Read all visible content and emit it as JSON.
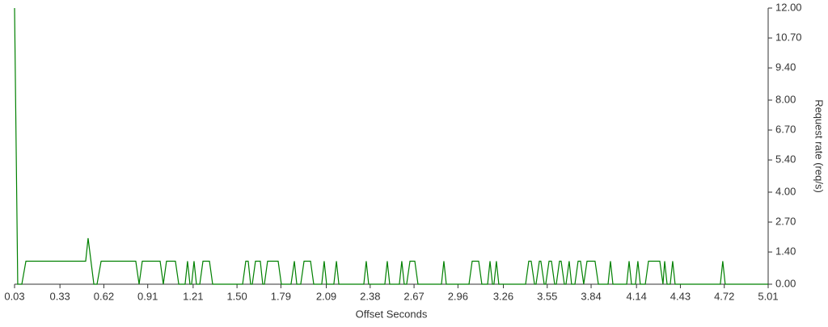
{
  "chart_data": {
    "type": "line",
    "x_label": "Offset Seconds",
    "y_label": "Request rate (req/s)",
    "color": "#008000",
    "y_axis_side": "right",
    "xlim": [
      0.03,
      5.01
    ],
    "xticks": [
      0.03,
      0.33,
      0.62,
      0.91,
      1.21,
      {
        "value": 1.5,
        "label": "1.50"
      },
      1.79,
      2.09,
      2.38,
      2.67,
      2.96,
      3.26,
      3.55,
      3.84,
      4.14,
      4.43,
      4.72,
      5.01
    ],
    "ylim": [
      0,
      12
    ],
    "yticks": [
      {
        "value": 0,
        "label": "0.00"
      },
      {
        "value": 1.4,
        "label": "1.40"
      },
      {
        "value": 2.7,
        "label": "2.70"
      },
      {
        "value": 4,
        "label": "4.00"
      },
      {
        "value": 5.4,
        "label": "5.40"
      },
      {
        "value": 6.7,
        "label": "6.70"
      },
      {
        "value": 8,
        "label": "8.00"
      },
      {
        "value": 9.4,
        "label": "9.40"
      },
      {
        "value": 10.7,
        "label": "10.70"
      },
      {
        "value": 12,
        "label": "12.00"
      }
    ],
    "x": [
      0.03,
      0.051,
      0.078,
      0.105,
      0.5,
      0.516,
      0.554,
      0.575,
      0.602,
      0.831,
      0.853,
      0.874,
      0.992,
      1.013,
      1.034,
      1.093,
      1.115,
      1.157,
      1.173,
      1.189,
      1.2,
      1.216,
      1.232,
      1.254,
      1.275,
      1.318,
      1.339,
      1.537,
      1.558,
      1.574,
      1.59,
      1.601,
      1.622,
      1.654,
      1.67,
      1.681,
      1.702,
      1.772,
      1.793,
      1.857,
      1.879,
      1.895,
      1.921,
      1.943,
      1.986,
      2.007,
      2.06,
      2.076,
      2.092,
      2.14,
      2.157,
      2.173,
      2.338,
      2.354,
      2.37,
      2.477,
      2.493,
      2.509,
      2.573,
      2.589,
      2.605,
      2.621,
      2.643,
      2.675,
      2.696,
      2.851,
      2.867,
      2.883,
      3.033,
      3.054,
      3.097,
      3.118,
      3.156,
      3.172,
      3.188,
      3.198,
      3.214,
      3.23,
      3.407,
      3.428,
      3.444,
      3.466,
      3.476,
      3.498,
      3.508,
      3.53,
      3.54,
      3.562,
      3.578,
      3.599,
      3.61,
      3.631,
      3.642,
      3.663,
      3.674,
      3.695,
      3.711,
      3.733,
      3.754,
      3.77,
      3.791,
      3.813,
      3.866,
      3.888,
      3.952,
      3.968,
      3.984,
      4.075,
      4.091,
      4.107,
      4.133,
      4.149,
      4.165,
      4.198,
      4.219,
      4.294,
      4.315,
      4.326,
      4.342,
      4.363,
      4.379,
      4.395,
      4.694,
      4.71,
      4.726,
      5.01
    ],
    "values": [
      12,
      0,
      0,
      1,
      1,
      2,
      0,
      0,
      1,
      1,
      0,
      1,
      1,
      0,
      1,
      1,
      0,
      0,
      1,
      0,
      0,
      1,
      0,
      0,
      1,
      1,
      0,
      0,
      1,
      1,
      0,
      0,
      1,
      1,
      0,
      0,
      1,
      1,
      0,
      0,
      1,
      0,
      0,
      1,
      1,
      0,
      0,
      1,
      0,
      0,
      1,
      0,
      0,
      1,
      0,
      0,
      1,
      0,
      0,
      1,
      0,
      0,
      1,
      1,
      0,
      0,
      1,
      0,
      0,
      1,
      1,
      0,
      0,
      1,
      0,
      0,
      1,
      0,
      0,
      1,
      1,
      0,
      0,
      1,
      1,
      0,
      0,
      1,
      1,
      0,
      0,
      1,
      1,
      0,
      0,
      1,
      0,
      0,
      1,
      1,
      0,
      1,
      1,
      0,
      0,
      1,
      0,
      0,
      1,
      0,
      0,
      1,
      0,
      0,
      1,
      1,
      0,
      1,
      0,
      0,
      1,
      0,
      0,
      1,
      0,
      0
    ]
  }
}
